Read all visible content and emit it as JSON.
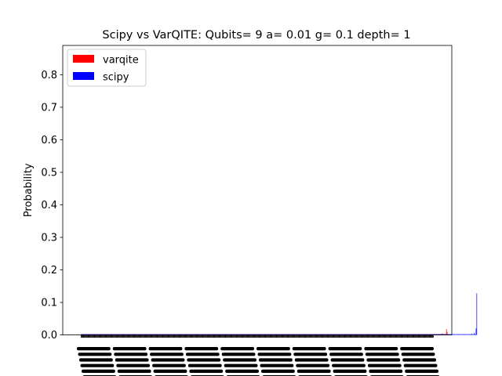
{
  "chart_data": {
    "type": "bar",
    "title": "Scipy vs VarQITE: Qubits= 9 a= 0.01 g= 0.1 depth= 1",
    "xlabel": "",
    "ylabel": "Probability",
    "ylim": [
      0,
      0.89
    ],
    "yticks": [
      "0.0",
      "0.1",
      "0.2",
      "0.3",
      "0.4",
      "0.5",
      "0.6",
      "0.7",
      "0.8"
    ],
    "categories_count": 512,
    "legend_position": "top-left",
    "grid": false,
    "series": [
      {
        "name": "varqite",
        "color": "#ff0000",
        "values": [
          0,
          0,
          0,
          0,
          0,
          0,
          0,
          0,
          0,
          0,
          0,
          0,
          0,
          0,
          0,
          0,
          0,
          0,
          0,
          0,
          0,
          0,
          0,
          0,
          0,
          0,
          0,
          0,
          0,
          0,
          0,
          0,
          0,
          0,
          0,
          0,
          0,
          0,
          0,
          0,
          0,
          0,
          0,
          0,
          0,
          0,
          0,
          0,
          0,
          0,
          0,
          0,
          0,
          0,
          0,
          0,
          0,
          0,
          0,
          0,
          0,
          0,
          0,
          0,
          0,
          0,
          0,
          0,
          0,
          0,
          0,
          0,
          0,
          0,
          0,
          0,
          0,
          0,
          0,
          0,
          0,
          0,
          0,
          0,
          0,
          0,
          0,
          0,
          0,
          0,
          0,
          0,
          0,
          0,
          0,
          0,
          0,
          0,
          0,
          0,
          0,
          0,
          0,
          0,
          0,
          0,
          0,
          0,
          0,
          0,
          0,
          0,
          0,
          0,
          0,
          0,
          0,
          0,
          0,
          0,
          0,
          0,
          0,
          0,
          0,
          0,
          0,
          0,
          0,
          0,
          0,
          0,
          0,
          0,
          0,
          0,
          0,
          0,
          0,
          0,
          0,
          0,
          0,
          0,
          0,
          0,
          0,
          0,
          0,
          0,
          0,
          0,
          0,
          0,
          0,
          0,
          0,
          0,
          0,
          0,
          0,
          0,
          0,
          0,
          0,
          0,
          0,
          0,
          0,
          0,
          0,
          0,
          0,
          0,
          0,
          0,
          0,
          0,
          0,
          0,
          0,
          0,
          0,
          0,
          0,
          0,
          0,
          0,
          0,
          0,
          0,
          0,
          0,
          0,
          0,
          0,
          0,
          0,
          0,
          0,
          0,
          0,
          0,
          0,
          0,
          0,
          0,
          0,
          0,
          0,
          0,
          0,
          0,
          0,
          0,
          0,
          0,
          0,
          0,
          0,
          0,
          0,
          0,
          0,
          0,
          0,
          0,
          0,
          0,
          0,
          0,
          0,
          0,
          0,
          0,
          0,
          0,
          0,
          0,
          0,
          0,
          0,
          0,
          0,
          0,
          0,
          0,
          0,
          0,
          0,
          0,
          0,
          0,
          0,
          0,
          0,
          0,
          0,
          0,
          0,
          0,
          0,
          0,
          0,
          0,
          0,
          0,
          0,
          0,
          0,
          0,
          0,
          0,
          0,
          0,
          0,
          0,
          0,
          0,
          0,
          0,
          0,
          0,
          0,
          0,
          0,
          0,
          0,
          0,
          0,
          0,
          0,
          0,
          0,
          0,
          0,
          0,
          0,
          0,
          0,
          0,
          0,
          0,
          0,
          0,
          0,
          0,
          0,
          0,
          0,
          0,
          0,
          0,
          0,
          0,
          0,
          0,
          0,
          0,
          0,
          0,
          0,
          0,
          0,
          0,
          0,
          0,
          0,
          0,
          0,
          0,
          0,
          0,
          0,
          0,
          0,
          0,
          0,
          0,
          0,
          0,
          0,
          0,
          0,
          0,
          0,
          0,
          0,
          0,
          0,
          0,
          0,
          0,
          0,
          0,
          0,
          0,
          0,
          0,
          0,
          0,
          0,
          0,
          0,
          0,
          0,
          0,
          0,
          0,
          0,
          0,
          0,
          0,
          0,
          0,
          0,
          0,
          0,
          0,
          0,
          0,
          0,
          0,
          0,
          0,
          0,
          0,
          0,
          0,
          0,
          0,
          0,
          0,
          0,
          0,
          0,
          0,
          0,
          0,
          0,
          0,
          0,
          0,
          0,
          0,
          0,
          0,
          0,
          0,
          0,
          0,
          0,
          0,
          0,
          0,
          0,
          0,
          0,
          0,
          0,
          0,
          0,
          0,
          0,
          0,
          0,
          0,
          0,
          0,
          0,
          0,
          0,
          0,
          0,
          0,
          0,
          0,
          0,
          0,
          0,
          0,
          0,
          0,
          0,
          0,
          0,
          0,
          0,
          0,
          0,
          0,
          0,
          0,
          0,
          0,
          0,
          0,
          0,
          0,
          0,
          0,
          0,
          0,
          0,
          0,
          0,
          0,
          0,
          0,
          0,
          0,
          0,
          0,
          0,
          0,
          0,
          0,
          0,
          0,
          0,
          0,
          0,
          0,
          0,
          0,
          0,
          0,
          0,
          0,
          0,
          0,
          0,
          0,
          0,
          0,
          0,
          0,
          0,
          0,
          0,
          0,
          0,
          0,
          0,
          0,
          0,
          0,
          0,
          0,
          0,
          0,
          0,
          0,
          0,
          0,
          0,
          0,
          0.002,
          0,
          0,
          0,
          0,
          0,
          0,
          0.005,
          0,
          0,
          0,
          0.003,
          0,
          0.018,
          0.01
        ]
      },
      {
        "name": "scipy",
        "color": "#0000ff",
        "values": [
          0,
          0,
          0,
          0,
          0,
          0,
          0,
          0,
          0,
          0,
          0,
          0,
          0,
          0,
          0,
          0,
          0,
          0,
          0,
          0,
          0,
          0,
          0,
          0,
          0,
          0,
          0,
          0,
          0,
          0,
          0,
          0,
          0,
          0,
          0,
          0,
          0,
          0,
          0,
          0,
          0,
          0,
          0,
          0,
          0,
          0,
          0,
          0,
          0,
          0,
          0,
          0,
          0,
          0,
          0,
          0,
          0,
          0,
          0,
          0,
          0,
          0,
          0,
          0,
          0,
          0,
          0,
          0,
          0,
          0,
          0,
          0,
          0,
          0,
          0,
          0,
          0,
          0,
          0,
          0,
          0,
          0,
          0,
          0,
          0,
          0,
          0,
          0,
          0,
          0,
          0,
          0,
          0,
          0,
          0,
          0,
          0,
          0,
          0,
          0,
          0,
          0,
          0,
          0,
          0,
          0,
          0,
          0,
          0,
          0,
          0,
          0,
          0,
          0,
          0,
          0,
          0,
          0,
          0,
          0,
          0,
          0,
          0,
          0,
          0,
          0,
          0,
          0,
          0,
          0,
          0,
          0,
          0,
          0,
          0,
          0,
          0,
          0,
          0,
          0,
          0,
          0,
          0,
          0,
          0,
          0,
          0,
          0,
          0,
          0,
          0,
          0,
          0,
          0,
          0,
          0,
          0,
          0,
          0,
          0,
          0,
          0,
          0,
          0,
          0,
          0,
          0,
          0,
          0,
          0,
          0,
          0,
          0,
          0,
          0,
          0,
          0,
          0,
          0,
          0,
          0,
          0,
          0,
          0,
          0,
          0,
          0,
          0,
          0,
          0,
          0,
          0,
          0,
          0,
          0,
          0,
          0,
          0,
          0,
          0,
          0,
          0,
          0,
          0,
          0,
          0,
          0,
          0,
          0,
          0,
          0,
          0,
          0,
          0,
          0,
          0,
          0,
          0,
          0,
          0,
          0,
          0,
          0,
          0,
          0,
          0,
          0,
          0,
          0,
          0,
          0,
          0,
          0,
          0,
          0,
          0,
          0,
          0,
          0,
          0,
          0,
          0,
          0,
          0,
          0,
          0,
          0,
          0,
          0,
          0,
          0,
          0,
          0,
          0,
          0,
          0,
          0,
          0,
          0,
          0,
          0,
          0,
          0,
          0,
          0,
          0,
          0,
          0,
          0,
          0,
          0,
          0,
          0,
          0,
          0,
          0,
          0,
          0,
          0,
          0,
          0,
          0,
          0,
          0,
          0,
          0,
          0,
          0,
          0,
          0,
          0,
          0,
          0,
          0,
          0,
          0,
          0,
          0,
          0,
          0,
          0,
          0,
          0,
          0,
          0,
          0,
          0,
          0,
          0,
          0,
          0,
          0,
          0,
          0,
          0,
          0,
          0,
          0,
          0,
          0,
          0,
          0,
          0,
          0,
          0,
          0,
          0,
          0,
          0,
          0,
          0,
          0,
          0,
          0,
          0,
          0,
          0,
          0,
          0,
          0,
          0,
          0,
          0,
          0,
          0,
          0,
          0,
          0,
          0,
          0,
          0,
          0,
          0,
          0,
          0,
          0,
          0,
          0,
          0,
          0,
          0,
          0,
          0,
          0,
          0,
          0,
          0,
          0,
          0,
          0,
          0,
          0,
          0,
          0,
          0,
          0,
          0,
          0,
          0,
          0,
          0,
          0,
          0,
          0,
          0,
          0,
          0,
          0,
          0,
          0,
          0,
          0,
          0,
          0,
          0,
          0,
          0,
          0,
          0,
          0,
          0,
          0,
          0,
          0,
          0,
          0,
          0,
          0,
          0,
          0,
          0,
          0,
          0,
          0,
          0,
          0,
          0,
          0,
          0,
          0,
          0,
          0,
          0,
          0,
          0,
          0,
          0,
          0,
          0,
          0,
          0,
          0,
          0,
          0,
          0,
          0,
          0,
          0,
          0,
          0,
          0,
          0,
          0,
          0,
          0,
          0,
          0,
          0,
          0,
          0,
          0,
          0,
          0,
          0,
          0,
          0,
          0,
          0,
          0,
          0,
          0,
          0,
          0,
          0,
          0,
          0,
          0,
          0,
          0,
          0,
          0,
          0,
          0,
          0,
          0,
          0,
          0,
          0,
          0,
          0,
          0,
          0,
          0,
          0,
          0,
          0,
          0,
          0,
          0,
          0,
          0,
          0,
          0,
          0,
          0,
          0,
          0,
          0,
          0,
          0,
          0,
          0,
          0,
          0,
          0,
          0,
          0,
          0,
          0,
          0,
          0,
          0,
          0,
          0,
          0,
          0,
          0,
          0,
          0,
          0,
          0,
          0,
          0,
          0,
          0,
          0,
          0,
          0,
          0,
          0,
          0,
          0,
          0,
          0,
          0,
          0,
          0,
          0,
          0,
          0,
          0,
          0,
          0,
          0,
          0,
          0,
          0,
          0,
          0,
          0,
          0,
          0,
          0,
          0,
          0,
          0,
          0,
          0,
          0,
          0,
          0,
          0,
          0,
          0,
          0,
          0,
          0,
          0.004,
          0,
          0,
          0.006,
          0.003,
          0,
          0.02,
          0.128
        ]
      }
    ]
  }
}
